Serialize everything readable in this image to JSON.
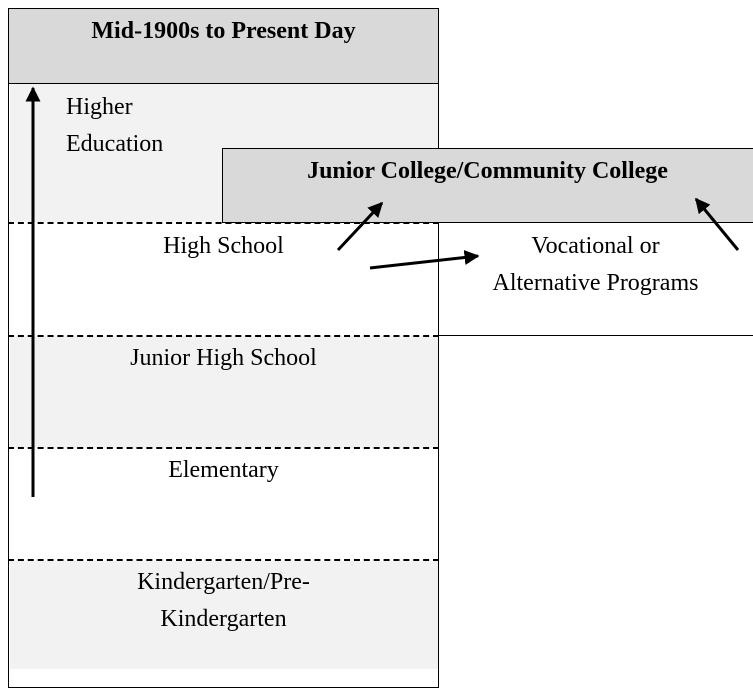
{
  "header": {
    "title": "Mid-1900s to Present Day"
  },
  "levels": [
    {
      "lines": [
        "Higher",
        "Education"
      ]
    },
    {
      "lines": [
        "High School"
      ]
    },
    {
      "lines": [
        "Junior High School"
      ]
    },
    {
      "lines": [
        "Elementary"
      ]
    },
    {
      "lines": [
        "Kindergarten/Pre-",
        "Kindergarten"
      ]
    }
  ],
  "junior_college": {
    "title": "Junior College/Community College"
  },
  "vocational": {
    "lines": [
      "Vocational or",
      "Alternative Programs"
    ]
  }
}
